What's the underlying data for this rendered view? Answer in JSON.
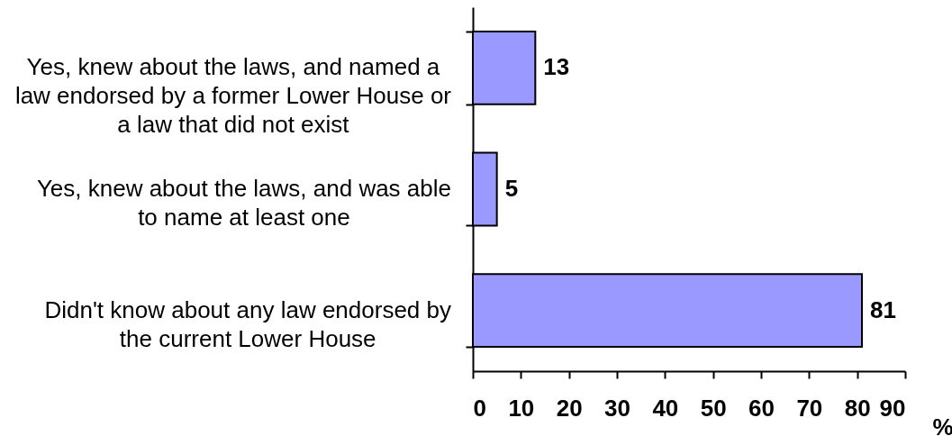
{
  "chart_data": {
    "type": "bar",
    "orientation": "horizontal",
    "categories": [
      "Yes, knew about the laws, and named a law endorsed by a former Lower House or a law that did not exist",
      "Yes, knew about the laws, and was able to name at least one",
      "Didn't know about any law endorsed by the current Lower House"
    ],
    "values": [
      13,
      5,
      81
    ],
    "color": "#9999ff",
    "data_labels": true,
    "xlabel": "%",
    "xlim": [
      0,
      90
    ],
    "xticks": [
      0,
      10,
      20,
      30,
      40,
      50,
      60,
      70,
      80,
      90
    ]
  }
}
